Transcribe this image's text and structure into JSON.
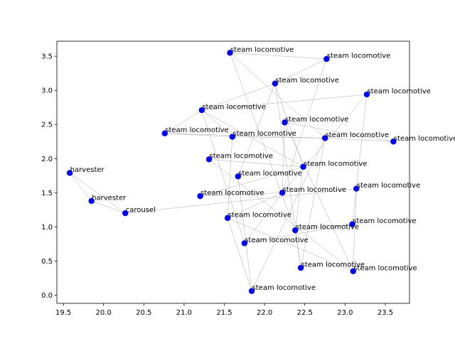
{
  "chart_data": {
    "type": "scatter",
    "title": "",
    "xlabel": "",
    "ylabel": "",
    "xlim": [
      19.42,
      23.8
    ],
    "ylim": [
      -0.12,
      3.72
    ],
    "xticks": [
      "19.5",
      "20.0",
      "20.5",
      "21.0",
      "21.5",
      "22.0",
      "22.5",
      "23.0",
      "23.5"
    ],
    "yticks": [
      "0.0",
      "0.5",
      "1.0",
      "1.5",
      "2.0",
      "2.5",
      "3.0",
      "3.5"
    ],
    "grid": false,
    "point_color": "#0000ff",
    "edge_color": "#aaaaaa",
    "points": [
      {
        "label": "harvester",
        "x": 19.58,
        "y": 1.79
      },
      {
        "label": "harvester",
        "x": 19.85,
        "y": 1.38
      },
      {
        "label": "carousel",
        "x": 20.27,
        "y": 1.2
      },
      {
        "label": "steam locomotive",
        "x": 20.76,
        "y": 2.37
      },
      {
        "label": "steam locomotive",
        "x": 21.2,
        "y": 1.45
      },
      {
        "label": "steam locomotive",
        "x": 21.22,
        "y": 2.71
      },
      {
        "label": "steam locomotive",
        "x": 21.31,
        "y": 1.99
      },
      {
        "label": "steam locomotive",
        "x": 21.54,
        "y": 1.13
      },
      {
        "label": "steam locomotive",
        "x": 21.57,
        "y": 3.55
      },
      {
        "label": "steam locomotive",
        "x": 21.6,
        "y": 2.32
      },
      {
        "label": "steam locomotive",
        "x": 21.67,
        "y": 1.74
      },
      {
        "label": "steam locomotive",
        "x": 21.75,
        "y": 0.76
      },
      {
        "label": "steam locomotive",
        "x": 21.84,
        "y": 0.06
      },
      {
        "label": "steam locomotive",
        "x": 22.13,
        "y": 3.1
      },
      {
        "label": "steam locomotive",
        "x": 22.22,
        "y": 1.5
      },
      {
        "label": "steam locomotive",
        "x": 22.25,
        "y": 2.53
      },
      {
        "label": "steam locomotive",
        "x": 22.38,
        "y": 0.95
      },
      {
        "label": "steam locomotive",
        "x": 22.45,
        "y": 0.4
      },
      {
        "label": "steam locomotive",
        "x": 22.48,
        "y": 1.88
      },
      {
        "label": "steam locomotive",
        "x": 22.75,
        "y": 2.3
      },
      {
        "label": "steam locomotive",
        "x": 22.77,
        "y": 3.46
      },
      {
        "label": "steam locomotive",
        "x": 23.09,
        "y": 1.04
      },
      {
        "label": "steam locomotive",
        "x": 23.1,
        "y": 0.35
      },
      {
        "label": "steam locomotive",
        "x": 23.14,
        "y": 1.56
      },
      {
        "label": "steam locomotive",
        "x": 23.27,
        "y": 2.94
      },
      {
        "label": "steam locomotive",
        "x": 23.6,
        "y": 2.25
      }
    ],
    "edges": [
      [
        0,
        1
      ],
      [
        0,
        2
      ],
      [
        1,
        2
      ],
      [
        2,
        23
      ],
      [
        3,
        9
      ],
      [
        3,
        5
      ],
      [
        3,
        19
      ],
      [
        5,
        13
      ],
      [
        5,
        9
      ],
      [
        5,
        11
      ],
      [
        5,
        24
      ],
      [
        5,
        18
      ],
      [
        8,
        20
      ],
      [
        8,
        16
      ],
      [
        8,
        19
      ],
      [
        13,
        20
      ],
      [
        13,
        10
      ],
      [
        13,
        18
      ],
      [
        13,
        17
      ],
      [
        20,
        14
      ],
      [
        9,
        19
      ],
      [
        19,
        25
      ],
      [
        19,
        17
      ],
      [
        19,
        12
      ],
      [
        15,
        25
      ],
      [
        15,
        14
      ],
      [
        15,
        22
      ],
      [
        24,
        14
      ],
      [
        24,
        23
      ],
      [
        23,
        22
      ],
      [
        23,
        21
      ],
      [
        6,
        18
      ],
      [
        6,
        22
      ],
      [
        4,
        14
      ],
      [
        4,
        18
      ],
      [
        10,
        12
      ],
      [
        7,
        12
      ],
      [
        7,
        14
      ],
      [
        7,
        9
      ],
      [
        14,
        11
      ],
      [
        11,
        21
      ],
      [
        16,
        21
      ],
      [
        16,
        17
      ],
      [
        16,
        18
      ],
      [
        7,
        22
      ]
    ]
  }
}
